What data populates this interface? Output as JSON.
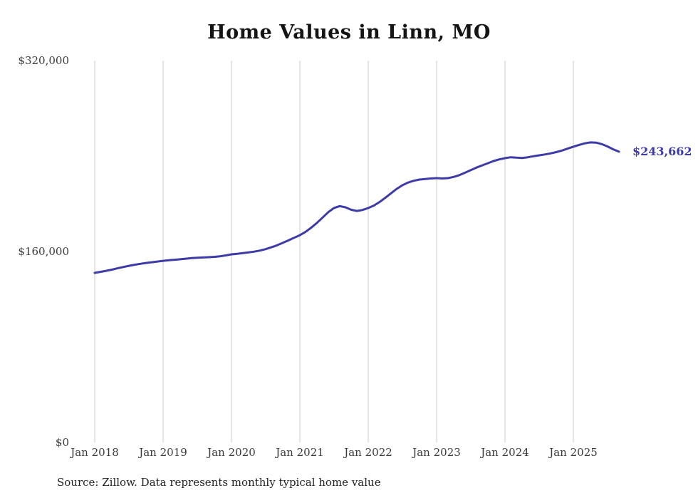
{
  "source_note": "Source: Zillow. Data represents monthly typical home value",
  "colors": {
    "line": "#3d3ba8",
    "grid": "#cccccc",
    "axis_text": "#3a3a3a",
    "title_text": "#141414"
  },
  "chart_data": {
    "type": "line",
    "title": "Home Values in Linn, MO",
    "xlabel": "",
    "ylabel": "",
    "ylim": [
      0,
      320000
    ],
    "grid": "vertical-only",
    "frequency": "monthly",
    "x_start": "Jan 2018",
    "x_tick_labels": [
      "Jan 2018",
      "Jan 2019",
      "Jan 2020",
      "Jan 2021",
      "Jan 2022",
      "Jan 2023",
      "Jan 2024",
      "Jan 2025"
    ],
    "y_tick_labels": [
      "$0",
      "$160,000",
      "$320,000"
    ],
    "y_tick_values": [
      0,
      160000,
      320000
    ],
    "end_label": "$243,662",
    "end_value": 243662,
    "values": [
      142100,
      142900,
      143800,
      144800,
      145900,
      147000,
      148000,
      148900,
      149700,
      150400,
      151000,
      151600,
      152200,
      152700,
      153100,
      153500,
      154000,
      154500,
      154800,
      155000,
      155200,
      155500,
      156000,
      156700,
      157600,
      158100,
      158600,
      159200,
      159900,
      160800,
      162000,
      163500,
      165200,
      167200,
      169300,
      171500,
      173700,
      176500,
      180000,
      184000,
      188500,
      193000,
      196500,
      198000,
      197000,
      195000,
      194000,
      194800,
      196400,
      198500,
      201500,
      205000,
      208800,
      212500,
      215500,
      217800,
      219300,
      220300,
      220800,
      221200,
      221500,
      221200,
      221500,
      222500,
      224000,
      226000,
      228200,
      230300,
      232200,
      234000,
      235800,
      237200,
      238200,
      239000,
      238600,
      238400,
      239000,
      239800,
      240600,
      241300,
      242200,
      243300,
      244600,
      246200,
      247800,
      249300,
      250600,
      251400,
      251200,
      250000,
      248000,
      245600,
      243662
    ]
  }
}
